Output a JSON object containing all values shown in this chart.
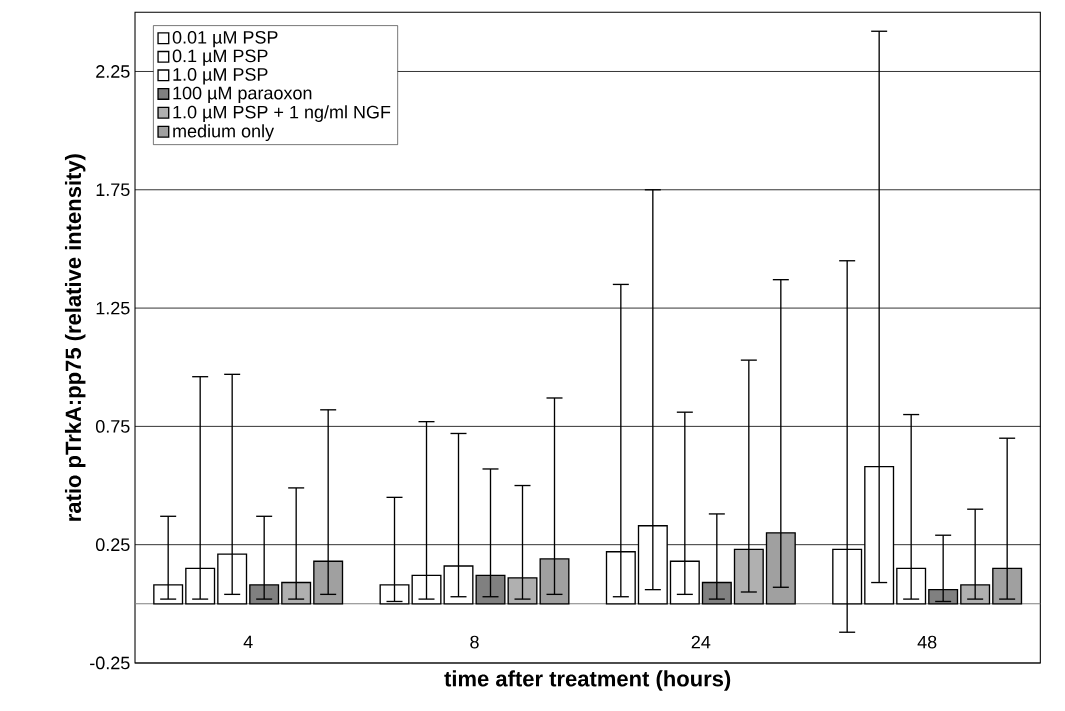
{
  "chart_data": {
    "type": "bar",
    "xlabel": "time after treatment (hours)",
    "ylabel": "ratio pTrkA:pp75 (relative intensity)",
    "categories": [
      "4",
      "8",
      "24",
      "48"
    ],
    "series": [
      {
        "name": "0.01 µM PSP",
        "color": "#ffffff",
        "values": [
          0.08,
          0.08,
          0.22,
          0.23
        ],
        "errors": [
          [
            0.02,
            0.37
          ],
          [
            0.01,
            0.45
          ],
          [
            0.03,
            1.35
          ],
          [
            -0.12,
            1.45
          ]
        ]
      },
      {
        "name": "0.1 µM PSP",
        "color": "#ffffff",
        "values": [
          0.15,
          0.12,
          0.33,
          0.58
        ],
        "errors": [
          [
            0.02,
            0.96
          ],
          [
            0.02,
            0.77
          ],
          [
            0.06,
            1.75
          ],
          [
            0.09,
            2.42
          ]
        ]
      },
      {
        "name": "1.0 µM PSP",
        "color": "#ffffff",
        "values": [
          0.21,
          0.16,
          0.18,
          0.15
        ],
        "errors": [
          [
            0.04,
            0.97
          ],
          [
            0.03,
            0.72
          ],
          [
            0.04,
            0.81
          ],
          [
            0.02,
            0.8
          ]
        ]
      },
      {
        "name": "100 µM paraoxon",
        "color": "#808080",
        "values": [
          0.08,
          0.12,
          0.09,
          0.06
        ],
        "errors": [
          [
            0.02,
            0.37
          ],
          [
            0.03,
            0.57
          ],
          [
            0.02,
            0.38
          ],
          [
            0.01,
            0.29
          ]
        ]
      },
      {
        "name": "1.0 µM PSP + 1 ng/ml NGF",
        "color": "#b0b0b0",
        "values": [
          0.09,
          0.11,
          0.23,
          0.08
        ],
        "errors": [
          [
            0.02,
            0.49
          ],
          [
            0.02,
            0.5
          ],
          [
            0.05,
            1.03
          ],
          [
            0.02,
            0.4
          ]
        ]
      },
      {
        "name": "medium only",
        "color": "#a0a0a0",
        "values": [
          0.18,
          0.19,
          0.3,
          0.15
        ],
        "errors": [
          [
            0.04,
            0.82
          ],
          [
            0.04,
            0.87
          ],
          [
            0.07,
            1.37
          ],
          [
            0.02,
            0.7
          ]
        ]
      }
    ],
    "ylim": [
      -0.25,
      2.5
    ],
    "yticks": [
      -0.25,
      0.25,
      0.75,
      1.25,
      1.75,
      2.25
    ],
    "grid": "y",
    "legend": "top left"
  }
}
